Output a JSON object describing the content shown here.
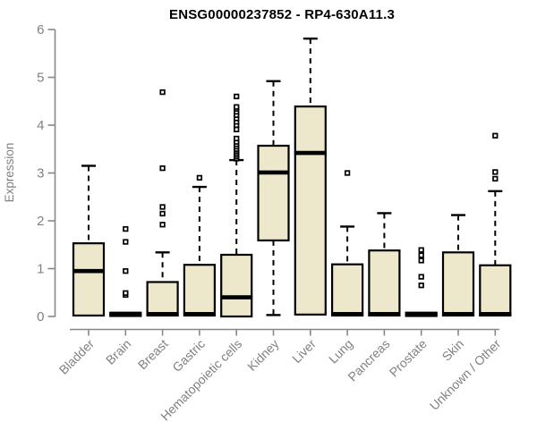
{
  "chart_data": {
    "type": "boxplot",
    "title": "ENSG00000237852 - RP4-630A11.3",
    "xlabel": "",
    "ylabel": "Expression",
    "ylim": [
      0,
      6
    ],
    "yticks": [
      0,
      1,
      2,
      3,
      4,
      5,
      6
    ],
    "grid": false,
    "legend": "none",
    "colors": {
      "box_fill": "#EDE8CC",
      "box_border": "#000000",
      "median": "#000000",
      "whisker": "#000000",
      "outlier_border": "#000000",
      "axis": "#878787",
      "tick_label": "#808080",
      "title": "#000000",
      "background": "#FFFFFF"
    },
    "categories": [
      "Bladder",
      "Brain",
      "Breast",
      "Gastric",
      "Hematopoietic cells",
      "Kidney",
      "Liver",
      "Lung",
      "Pancreas",
      "Prostate",
      "Skin",
      "Unknown / Other"
    ],
    "series": [
      {
        "label": "Bladder",
        "low": 0.02,
        "q1": 0.02,
        "median": 0.95,
        "q3": 1.53,
        "high": 3.15,
        "outliers": []
      },
      {
        "label": "Brain",
        "low": 0.01,
        "q1": 0.01,
        "median": 0.04,
        "q3": 0.08,
        "high": 0.08,
        "outliers": [
          0.45,
          0.49,
          0.95,
          1.56,
          1.83
        ]
      },
      {
        "label": "Breast",
        "low": 0.02,
        "q1": 0.02,
        "median": 0.05,
        "q3": 0.72,
        "high": 1.34,
        "outliers": [
          1.92,
          2.15,
          2.29,
          3.1,
          4.69
        ]
      },
      {
        "label": "Gastric",
        "low": 0.02,
        "q1": 0.02,
        "median": 0.05,
        "q3": 1.08,
        "high": 2.71,
        "outliers": [
          2.9
        ]
      },
      {
        "label": "Hematopoietic cells",
        "low": 0.0,
        "q1": 0.0,
        "median": 0.4,
        "q3": 1.29,
        "high": 3.27,
        "outliers": [
          3.3,
          3.34,
          3.38,
          3.42,
          3.46,
          3.5,
          3.55,
          3.6,
          3.65,
          3.72,
          3.91,
          4.0,
          4.07,
          4.14,
          4.21,
          4.28,
          4.34,
          4.38,
          4.6
        ]
      },
      {
        "label": "Kidney",
        "low": 0.03,
        "q1": 1.59,
        "median": 3.01,
        "q3": 3.57,
        "high": 4.92,
        "outliers": []
      },
      {
        "label": "Liver",
        "low": 0.04,
        "q1": 0.04,
        "median": 3.42,
        "q3": 4.39,
        "high": 5.81,
        "outliers": []
      },
      {
        "label": "Lung",
        "low": 0.02,
        "q1": 0.02,
        "median": 0.05,
        "q3": 1.09,
        "high": 1.88,
        "outliers": [
          3.0
        ]
      },
      {
        "label": "Pancreas",
        "low": 0.02,
        "q1": 0.02,
        "median": 0.05,
        "q3": 1.38,
        "high": 2.16,
        "outliers": []
      },
      {
        "label": "Prostate",
        "low": 0.01,
        "q1": 0.01,
        "median": 0.04,
        "q3": 0.08,
        "high": 0.08,
        "outliers": [
          0.65,
          0.83,
          1.17,
          1.28,
          1.39
        ]
      },
      {
        "label": "Skin",
        "low": 0.02,
        "q1": 0.02,
        "median": 0.05,
        "q3": 1.34,
        "high": 2.12,
        "outliers": []
      },
      {
        "label": "Unknown / Other",
        "low": 0.02,
        "q1": 0.02,
        "median": 0.05,
        "q3": 1.07,
        "high": 2.62,
        "outliers": [
          2.88,
          3.02,
          3.78
        ]
      }
    ]
  }
}
